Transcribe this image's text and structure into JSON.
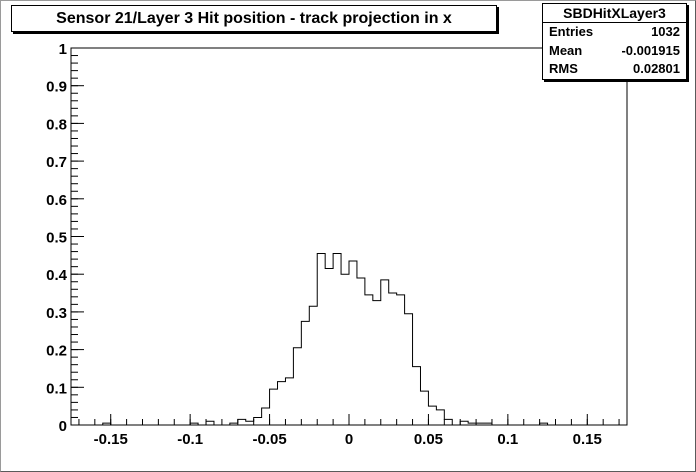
{
  "window": {
    "title": "Sensor 21/Layer 3 Hit position - track projection in x"
  },
  "stats": {
    "name": "SBDHitXLayer3",
    "entries_label": "Entries",
    "entries_value": "1032",
    "mean_label": "Mean",
    "mean_value": "-0.001915",
    "rms_label": "RMS",
    "rms_value": "0.02801"
  },
  "colors": {
    "line": "#000000",
    "background": "#ffffff"
  },
  "chart_data": {
    "type": "bar",
    "title": "Sensor 21/Layer 3 Hit position - track projection in x",
    "xlabel": "",
    "ylabel": "",
    "xlim": [
      -0.175,
      0.175
    ],
    "ylim": [
      0,
      1
    ],
    "grid": false,
    "legend": "none",
    "bin_width": 0.005,
    "bin_start": -0.175,
    "x_ticks": [
      -0.15,
      -0.1,
      -0.05,
      0,
      0.05,
      0.1,
      0.15
    ],
    "x_tick_labels": [
      "-0.15",
      "-0.1",
      "-0.05",
      "0",
      "0.05",
      "0.1",
      "0.15"
    ],
    "y_ticks": [
      0,
      0.1,
      0.2,
      0.3,
      0.4,
      0.5,
      0.6,
      0.7,
      0.8,
      0.9,
      1
    ],
    "y_tick_labels": [
      "0",
      "0.1",
      "0.2",
      "0.3",
      "0.4",
      "0.5",
      "0.6",
      "0.7",
      "0.8",
      "0.9",
      "1"
    ],
    "values": [
      0,
      0,
      0,
      0,
      0.005,
      0,
      0,
      0,
      0,
      0,
      0,
      0,
      0,
      0,
      0,
      0.005,
      0,
      0.01,
      0,
      0,
      0.005,
      0.015,
      0.01,
      0.02,
      0.045,
      0.095,
      0.115,
      0.125,
      0.205,
      0.275,
      0.315,
      0.455,
      0.415,
      0.455,
      0.4,
      0.435,
      0.39,
      0.345,
      0.33,
      0.385,
      0.35,
      0.345,
      0.295,
      0.155,
      0.09,
      0.05,
      0.04,
      0.015,
      0,
      0.01,
      0.005,
      0.005,
      0.005,
      0,
      0,
      0,
      0,
      0,
      0,
      0.005,
      0,
      0,
      0,
      0,
      0,
      0,
      0,
      0,
      0,
      0
    ]
  }
}
